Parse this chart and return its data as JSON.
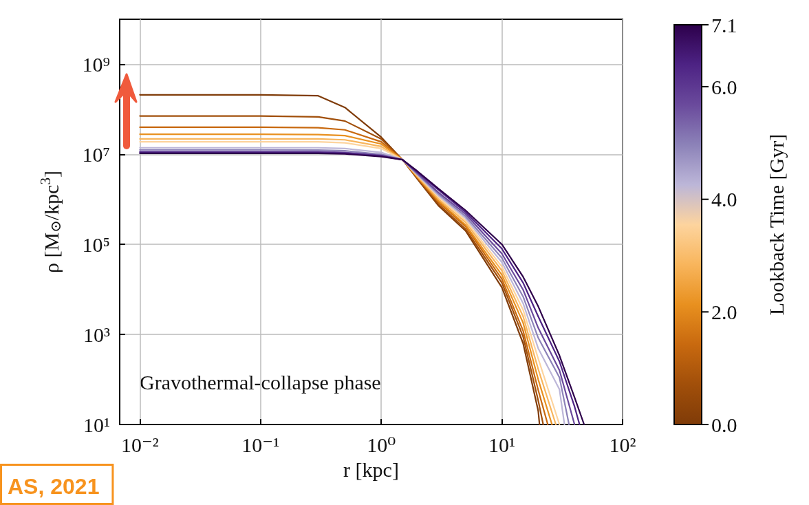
{
  "chart_data": {
    "type": "line",
    "xlabel": "r [kpc]",
    "ylabel": "ρ [M$_{⊙}$/kpc$^{3}$]",
    "clabel": "Lookback Time [Gyr]",
    "log": "xy",
    "grid": true,
    "marker": "none",
    "line_style": "solid",
    "xlim": [
      0.0068,
      100
    ],
    "ylim": [
      10,
      10000000000.0
    ],
    "xticks": [
      {
        "value": 0.01,
        "label": "10⁻²"
      },
      {
        "value": 0.1,
        "label": "10⁻¹"
      },
      {
        "value": 1,
        "label": "10⁰"
      },
      {
        "value": 10,
        "label": "10¹"
      },
      {
        "value": 100,
        "label": "10²"
      }
    ],
    "yticks": [
      {
        "value": 10,
        "label": "10¹"
      },
      {
        "value": 1000,
        "label": "10³"
      },
      {
        "value": 100000,
        "label": "10⁵"
      },
      {
        "value": 10000000,
        "label": "10⁷"
      },
      {
        "value": 1000000000,
        "label": "10⁹"
      }
    ],
    "clim": [
      0,
      7.1
    ],
    "cticks": [
      {
        "value": 0,
        "label": "0.0"
      },
      {
        "value": 2,
        "label": "2.0"
      },
      {
        "value": 4,
        "label": "4.0"
      },
      {
        "value": 6,
        "label": "6.0"
      },
      {
        "value": 7.1,
        "label": "7.1"
      }
    ],
    "annotations": [
      "Gravothermal-collapse phase",
      "AS, 2021"
    ],
    "series": [
      {
        "color": "#7f3b08",
        "x": [
          0.01,
          0.1,
          0.3,
          0.5,
          1,
          1.5,
          2,
          3,
          5,
          10,
          15,
          20,
          20.5
        ],
        "values": [
          210000000.0,
          210000000.0,
          200000000.0,
          110000000.0,
          24000000.0,
          7600000.0,
          2800000.0,
          710000.0,
          200000.0,
          11000.0,
          630,
          20,
          10
        ]
      },
      {
        "color": "#a14f0a",
        "x": [
          0.01,
          0.1,
          0.3,
          0.5,
          1,
          1.5,
          2,
          3,
          5,
          10,
          15,
          20,
          22
        ],
        "values": [
          71000000.0,
          71000000.0,
          68000000.0,
          55000000.0,
          22000000.0,
          7600000.0,
          2900000.0,
          770000.0,
          220000.0,
          14000.0,
          890,
          34,
          10
        ]
      },
      {
        "color": "#c8690f",
        "x": [
          0.01,
          0.1,
          0.3,
          0.5,
          1,
          1.5,
          2,
          3,
          5,
          10,
          15,
          20,
          24
        ],
        "values": [
          40000000.0,
          40000000.0,
          39000000.0,
          35000000.0,
          19000000.0,
          7600000.0,
          3000000.0,
          850000.0,
          250000.0,
          17000.0,
          1200,
          58,
          10
        ]
      },
      {
        "color": "#e8901f",
        "x": [
          0.01,
          0.1,
          0.3,
          0.5,
          1,
          1.5,
          2,
          3,
          5,
          10,
          15,
          20,
          26
        ],
        "values": [
          28000000.0,
          28000000.0,
          27500000.0,
          26000000.0,
          17000000.0,
          7600000.0,
          3100000.0,
          920000.0,
          270000.0,
          21000.0,
          1800,
          100,
          10
        ]
      },
      {
        "color": "#f8b55c",
        "x": [
          0.01,
          0.1,
          0.3,
          0.5,
          1,
          1.5,
          2,
          3,
          5,
          10,
          15,
          20,
          28
        ],
        "values": [
          22000000.0,
          22000000.0,
          22000000.0,
          21000000.0,
          15000000.0,
          7600000.0,
          3200000.0,
          1000000.0,
          310000.0,
          26000.0,
          2500,
          170,
          10
        ]
      },
      {
        "color": "#fdd49e",
        "x": [
          0.01,
          0.1,
          0.3,
          0.5,
          1,
          1.5,
          2,
          3,
          5,
          10,
          15,
          20,
          30
        ],
        "values": [
          19000000.0,
          19000000.0,
          19000000.0,
          18000000.0,
          13500000.0,
          7600000.0,
          3400000.0,
          1100000.0,
          340000.0,
          32000.0,
          3500,
          290,
          10
        ]
      },
      {
        "color": "#bcb6d8",
        "x": [
          0.01,
          0.1,
          0.3,
          0.5,
          1,
          1.5,
          2,
          3,
          5,
          10,
          15,
          20,
          30,
          33
        ],
        "values": [
          14000000.0,
          14000000.0,
          14000000.0,
          13500000.0,
          11000000.0,
          7600000.0,
          3500000.0,
          1200000.0,
          380000.0,
          40000.0,
          4900,
          490,
          60,
          10
        ]
      },
      {
        "color": "#8c82b8",
        "x": [
          0.01,
          0.1,
          0.3,
          0.5,
          1,
          1.5,
          2,
          3,
          5,
          10,
          15,
          20,
          30,
          36
        ],
        "values": [
          12600000.0,
          12600000.0,
          12500000.0,
          12000000.0,
          10000000.0,
          7600000.0,
          3600000.0,
          1300000.0,
          420000.0,
          50000.0,
          6900,
          840,
          110,
          10
        ]
      },
      {
        "color": "#6a4a9c",
        "x": [
          0.01,
          0.1,
          0.3,
          0.5,
          1,
          1.5,
          2,
          3,
          5,
          10,
          15,
          20,
          30,
          40
        ],
        "values": [
          11500000.0,
          11500000.0,
          11500000.0,
          11000000.0,
          9500000.0,
          7600000.0,
          3800000.0,
          1400000.0,
          470000.0,
          62000.0,
          9800,
          1400,
          160,
          10
        ]
      },
      {
        "color": "#4d2384",
        "x": [
          0.01,
          0.1,
          0.3,
          0.5,
          1,
          1.5,
          2,
          3,
          5,
          10,
          15,
          20,
          30,
          40,
          44
        ],
        "values": [
          11000000.0,
          11000000.0,
          11000000.0,
          10600000.0,
          9200000.0,
          7600000.0,
          4000000.0,
          1600000.0,
          520000.0,
          80000.0,
          14000.0,
          2500,
          250,
          25,
          10
        ]
      },
      {
        "color": "#2d004b",
        "x": [
          0.01,
          0.1,
          0.3,
          0.5,
          1,
          1.5,
          2,
          3,
          5,
          10,
          15,
          20,
          30,
          40,
          48
        ],
        "values": [
          10500000.0,
          10500000.0,
          10500000.0,
          10200000.0,
          8900000.0,
          7600000.0,
          4200000.0,
          1700000.0,
          570000.0,
          100000.0,
          19000.0,
          4200,
          340,
          40,
          10
        ]
      }
    ]
  }
}
